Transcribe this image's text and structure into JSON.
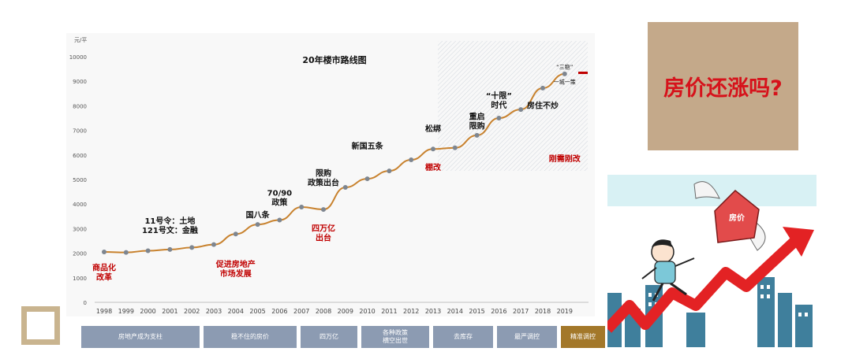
{
  "chart_data": {
    "type": "line",
    "title": "20年楼市路线图",
    "y_unit": "元/平",
    "ylim": [
      0,
      10000
    ],
    "yticks": [
      0,
      1000,
      2000,
      3000,
      4000,
      5000,
      6000,
      7000,
      8000,
      9000,
      10000
    ],
    "categories": [
      "1998",
      "1999",
      "2000",
      "2001",
      "2002",
      "2003",
      "2004",
      "2005",
      "2006",
      "2007",
      "2008",
      "2009",
      "2010",
      "2011",
      "2012",
      "2013",
      "2014",
      "2015",
      "2016",
      "2017",
      "2018",
      "2019"
    ],
    "values": [
      2050,
      2030,
      2100,
      2150,
      2230,
      2350,
      2780,
      3170,
      3350,
      3880,
      3780,
      4680,
      5030,
      5350,
      5800,
      6240,
      6290,
      6800,
      7500,
      7850,
      8720,
      9300
    ],
    "line_color": "#c8822e",
    "marker_color": "#7e8690",
    "annotations": [
      {
        "text": "商品化\n改革",
        "category": "1998",
        "y": 1300,
        "color": "#c00000"
      },
      {
        "text": "11号令：土地\n121号文：金融",
        "category": "2001",
        "y": 3200,
        "color": "#111111"
      },
      {
        "text": "促进房地产\n市场发展",
        "category": "2004",
        "y": 1450,
        "color": "#c00000"
      },
      {
        "text": "国八条",
        "category": "2005",
        "y": 3450,
        "color": "#111111"
      },
      {
        "text": "70/90\n政策",
        "category": "2006",
        "y": 4350,
        "color": "#111111"
      },
      {
        "text": "四万亿\n出台",
        "category": "2008",
        "y": 2900,
        "color": "#c00000"
      },
      {
        "text": "限购\n政策出台",
        "category": "2008",
        "y": 5150,
        "color": "#111111"
      },
      {
        "text": "新国五条",
        "category": "2010",
        "y": 6250,
        "color": "#111111"
      },
      {
        "text": "松绑",
        "category": "2013",
        "y": 6950,
        "color": "#111111"
      },
      {
        "text": "棚改",
        "category": "2013",
        "y": 5380,
        "color": "#c00000"
      },
      {
        "text": "重启\n限购",
        "category": "2015",
        "y": 7450,
        "color": "#111111"
      },
      {
        "text": "“十限”\n时代",
        "category": "2016",
        "y": 8300,
        "color": "#111111"
      },
      {
        "text": "房住不炒",
        "category": "2018",
        "y": 7900,
        "color": "#111111"
      },
      {
        "text": "“三稳”",
        "category": "2019",
        "y": 9500,
        "color": "#111111"
      },
      {
        "text": "一城一策",
        "category": "2019",
        "y": 8900,
        "color": "#111111"
      },
      {
        "text": "刚需刚改",
        "category": "2019",
        "y": 5730,
        "color": "#c00000"
      }
    ],
    "grid": false,
    "legend": "none"
  },
  "phases": [
    {
      "label": "房地产成为支柱",
      "color": "#8c9bb2"
    },
    {
      "label": "稳不住的房价",
      "color": "#8c9bb2"
    },
    {
      "label": "四万亿",
      "color": "#8c9bb2"
    },
    {
      "label": "各种政策\n横空出世",
      "color": "#8c9bb2"
    },
    {
      "label": "去库存",
      "color": "#8c9bb2"
    },
    {
      "label": "最严调控",
      "color": "#8c9bb2"
    },
    {
      "label": "精准调控",
      "color": "#a3782a"
    }
  ],
  "side_panel": {
    "question": "房价还涨吗?",
    "cartoon_house_label": "房价"
  }
}
